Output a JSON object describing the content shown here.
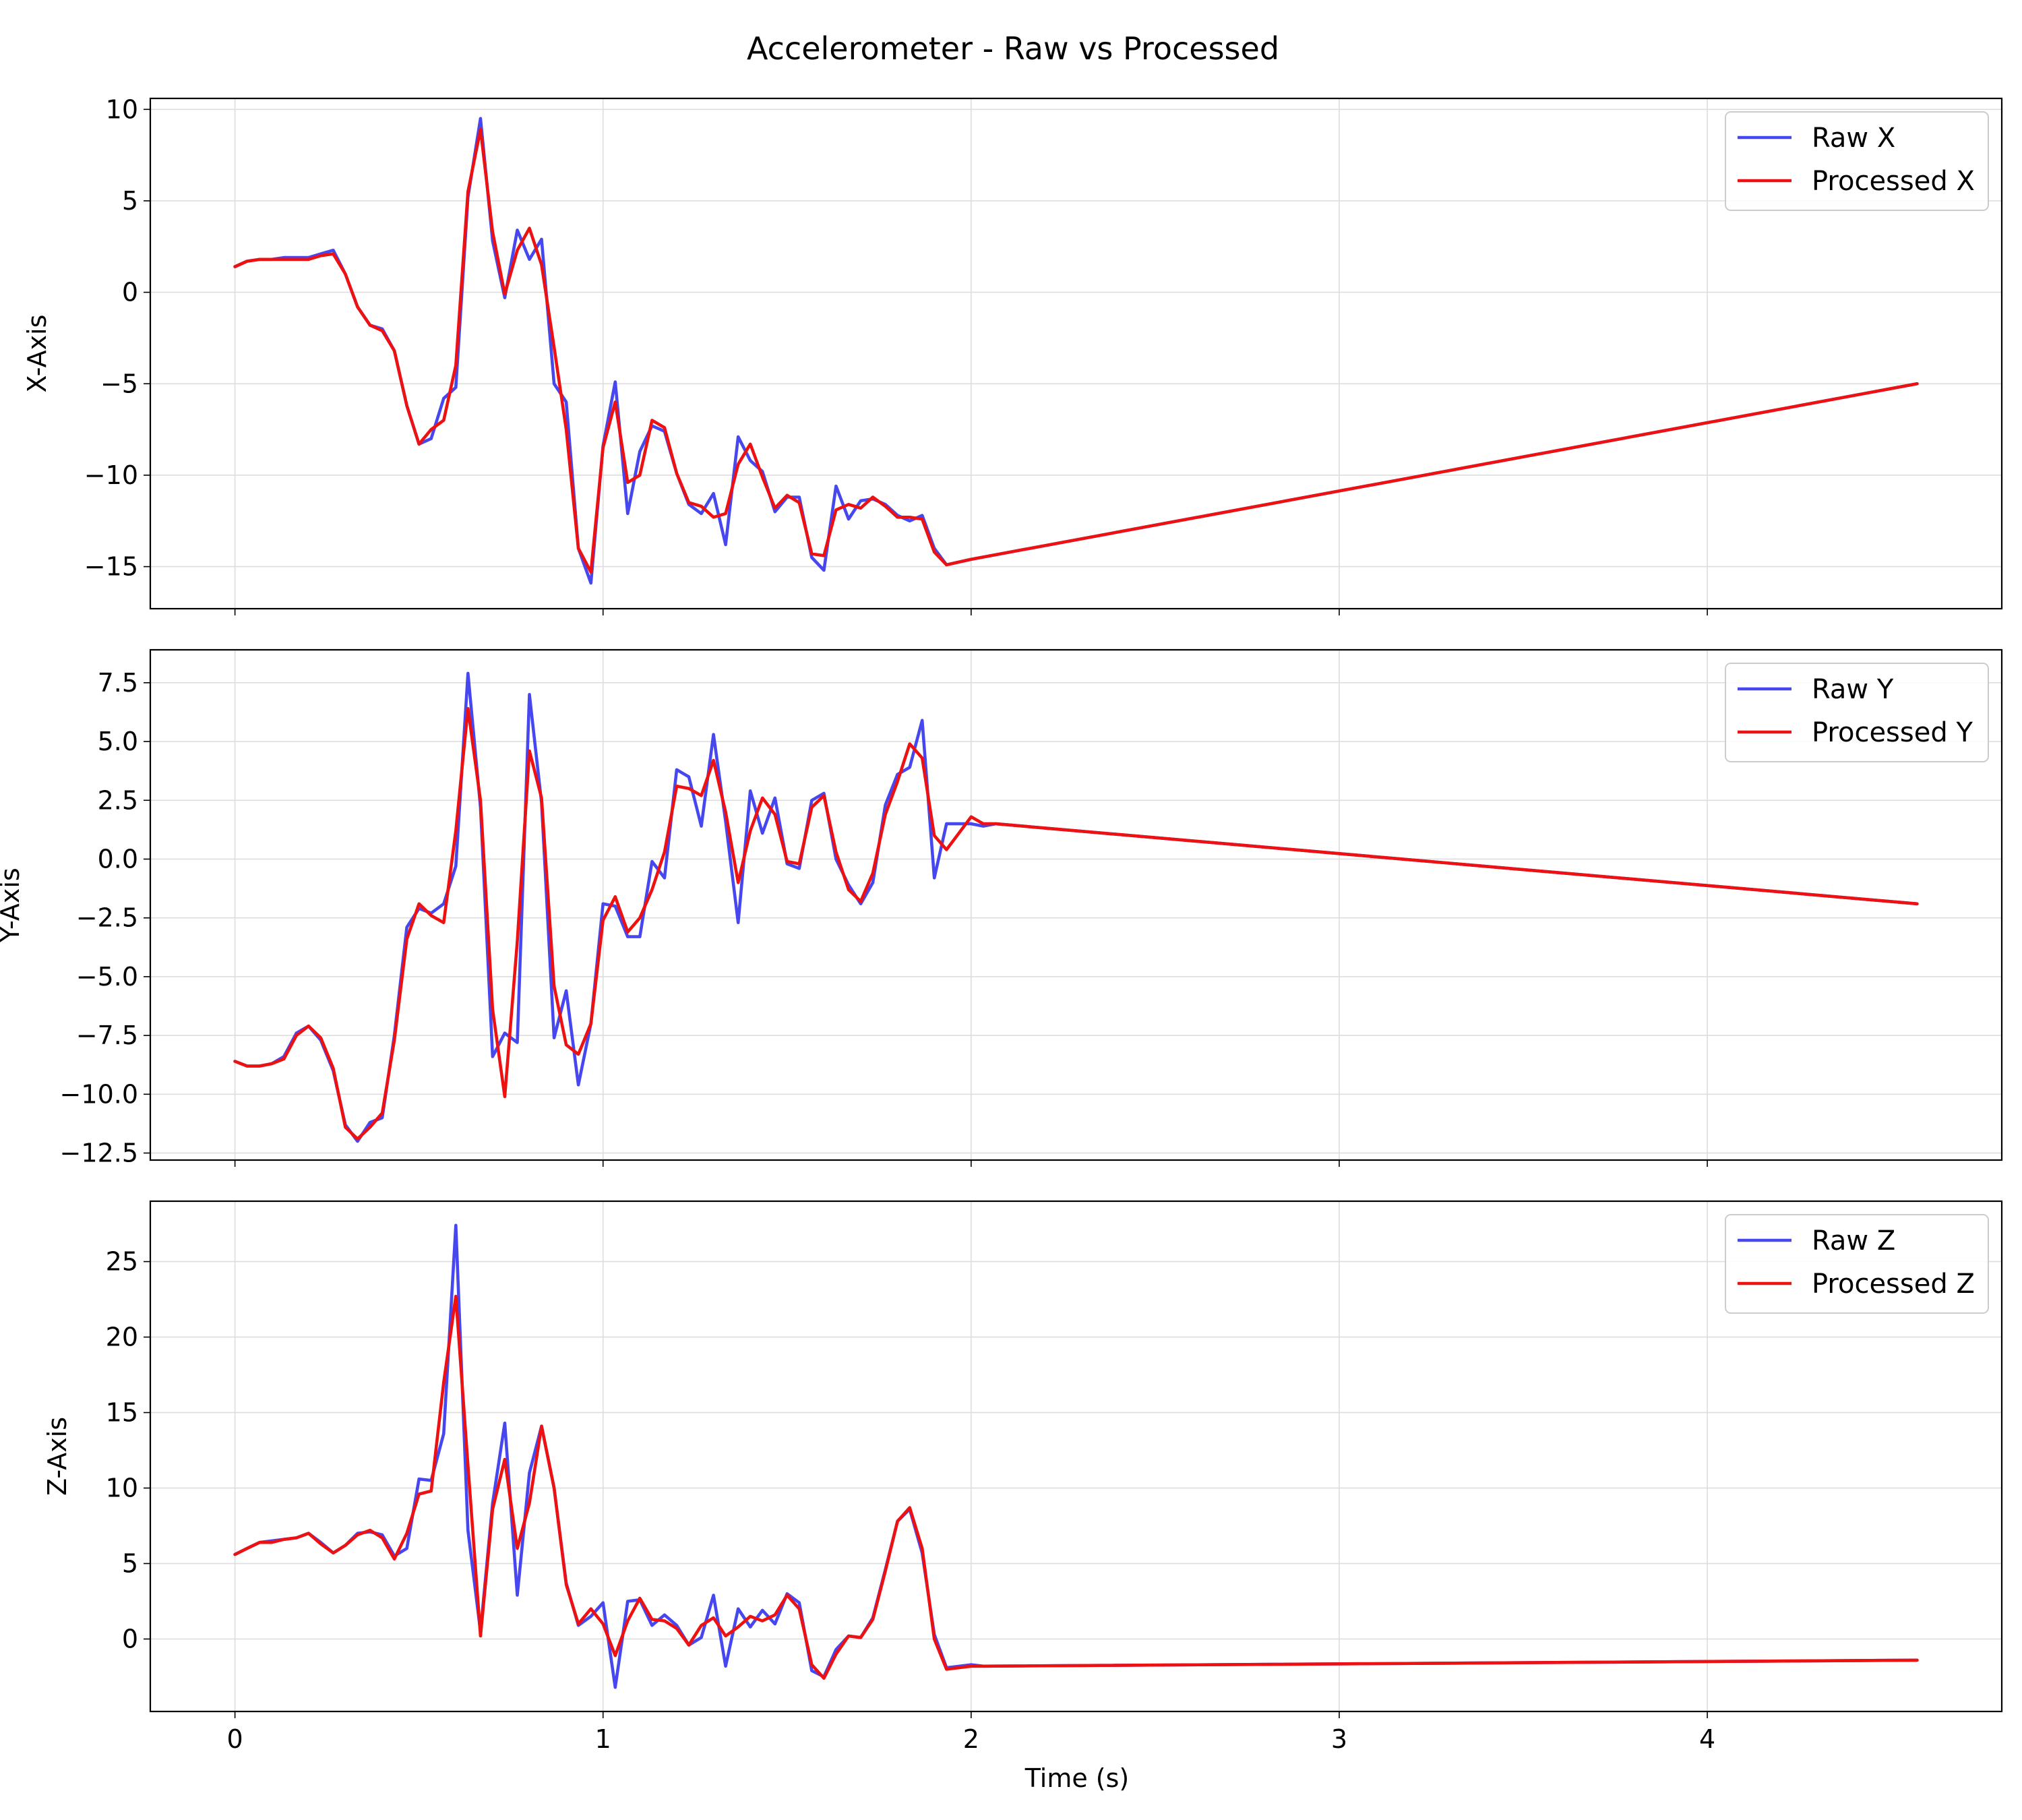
{
  "chart_data": {
    "type": "line",
    "title": "Accelerometer - Raw vs Processed",
    "xlabel": "Time (s)",
    "grid": true,
    "legend_position": "top-right",
    "colors": {
      "raw": "#3333ee",
      "processed": "#ee1111"
    },
    "xlim": [
      -0.23,
      4.8
    ],
    "xticks": [
      0,
      1,
      2,
      3,
      4
    ],
    "subplots": [
      {
        "ylabel": "X-Axis",
        "ylim": [
          -17.3,
          10.6
        ],
        "yticks": [
          10,
          5,
          0,
          -5,
          -10,
          -15
        ],
        "yticklabels": [
          "10",
          "5",
          "0",
          "−5",
          "−10",
          "−15"
        ],
        "series": [
          {
            "name": "Raw X",
            "x": [
              0,
              0.033,
              0.067,
              0.1,
              0.133,
              0.167,
              0.2,
              0.233,
              0.267,
              0.3,
              0.333,
              0.367,
              0.4,
              0.433,
              0.467,
              0.5,
              0.533,
              0.567,
              0.6,
              0.633,
              0.667,
              0.7,
              0.733,
              0.767,
              0.8,
              0.833,
              0.867,
              0.9,
              0.933,
              0.967,
              1.0,
              1.033,
              1.067,
              1.1,
              1.133,
              1.167,
              1.2,
              1.233,
              1.267,
              1.3,
              1.333,
              1.367,
              1.4,
              1.433,
              1.467,
              1.5,
              1.533,
              1.567,
              1.6,
              1.633,
              1.667,
              1.7,
              1.733,
              1.767,
              1.8,
              1.833,
              1.867,
              1.9,
              1.933,
              2.0,
              4.57
            ],
            "y": [
              1.4,
              1.7,
              1.8,
              1.8,
              1.9,
              1.9,
              1.9,
              2.1,
              2.3,
              1.0,
              -0.8,
              -1.8,
              -2.0,
              -3.2,
              -6.2,
              -8.3,
              -8.0,
              -5.8,
              -5.2,
              5.2,
              9.5,
              2.8,
              -0.3,
              3.4,
              1.8,
              2.9,
              -5.0,
              -6.0,
              -14.0,
              -15.9,
              -8.4,
              -4.9,
              -12.1,
              -8.7,
              -7.3,
              -7.6,
              -9.9,
              -11.6,
              -12.1,
              -11.0,
              -13.8,
              -7.9,
              -9.2,
              -9.8,
              -12.0,
              -11.2,
              -11.2,
              -14.5,
              -15.2,
              -10.6,
              -12.4,
              -11.4,
              -11.3,
              -11.6,
              -12.2,
              -12.5,
              -12.2,
              -14.0,
              -14.9,
              -14.6,
              -5.0
            ]
          },
          {
            "name": "Processed X",
            "x": [
              0,
              0.033,
              0.067,
              0.1,
              0.133,
              0.167,
              0.2,
              0.233,
              0.267,
              0.3,
              0.333,
              0.367,
              0.4,
              0.433,
              0.467,
              0.5,
              0.533,
              0.567,
              0.6,
              0.633,
              0.667,
              0.7,
              0.733,
              0.767,
              0.8,
              0.833,
              0.867,
              0.9,
              0.933,
              0.967,
              1.0,
              1.033,
              1.067,
              1.1,
              1.133,
              1.167,
              1.2,
              1.233,
              1.267,
              1.3,
              1.333,
              1.367,
              1.4,
              1.433,
              1.467,
              1.5,
              1.533,
              1.567,
              1.6,
              1.633,
              1.667,
              1.7,
              1.733,
              1.767,
              1.8,
              1.833,
              1.867,
              1.9,
              1.933,
              2.0,
              4.57
            ],
            "y": [
              1.4,
              1.7,
              1.8,
              1.8,
              1.8,
              1.8,
              1.8,
              2.0,
              2.1,
              1.0,
              -0.8,
              -1.8,
              -2.1,
              -3.2,
              -6.2,
              -8.3,
              -7.5,
              -7.0,
              -4.0,
              5.5,
              8.9,
              3.3,
              -0.1,
              2.3,
              3.5,
              1.5,
              -3.0,
              -7.5,
              -14.0,
              -15.3,
              -8.5,
              -6.0,
              -10.4,
              -10.0,
              -7.0,
              -7.4,
              -9.9,
              -11.5,
              -11.7,
              -12.3,
              -12.1,
              -9.4,
              -8.3,
              -10.1,
              -11.8,
              -11.1,
              -11.5,
              -14.3,
              -14.4,
              -11.9,
              -11.6,
              -11.8,
              -11.2,
              -11.7,
              -12.3,
              -12.3,
              -12.4,
              -14.2,
              -14.9,
              -14.6,
              -5.0
            ]
          }
        ]
      },
      {
        "ylabel": "Y-Axis",
        "ylim": [
          -12.8,
          8.9
        ],
        "yticks": [
          7.5,
          5.0,
          2.5,
          0.0,
          -2.5,
          -5.0,
          -7.5,
          -10.0,
          -12.5
        ],
        "yticklabels": [
          "7.5",
          "5.0",
          "2.5",
          "0.0",
          "−2.5",
          "−5.0",
          "−7.5",
          "−10.0",
          "−12.5"
        ],
        "series": [
          {
            "name": "Raw Y",
            "x": [
              0,
              0.033,
              0.067,
              0.1,
              0.133,
              0.167,
              0.2,
              0.233,
              0.267,
              0.3,
              0.333,
              0.367,
              0.4,
              0.433,
              0.467,
              0.5,
              0.533,
              0.567,
              0.6,
              0.633,
              0.667,
              0.7,
              0.733,
              0.767,
              0.8,
              0.833,
              0.867,
              0.9,
              0.933,
              0.967,
              1.0,
              1.033,
              1.067,
              1.1,
              1.133,
              1.167,
              1.2,
              1.233,
              1.267,
              1.3,
              1.333,
              1.367,
              1.4,
              1.433,
              1.467,
              1.5,
              1.533,
              1.567,
              1.6,
              1.633,
              1.667,
              1.7,
              1.733,
              1.767,
              1.8,
              1.833,
              1.867,
              1.9,
              1.933,
              2.0,
              2.033,
              2.067,
              4.57
            ],
            "y": [
              -8.6,
              -8.8,
              -8.8,
              -8.7,
              -8.4,
              -7.4,
              -7.1,
              -7.7,
              -9.0,
              -11.3,
              -12.0,
              -11.2,
              -11.0,
              -7.5,
              -2.9,
              -2.1,
              -2.3,
              -1.9,
              -0.3,
              7.9,
              2.2,
              -8.4,
              -7.4,
              -7.8,
              7.0,
              2.4,
              -7.6,
              -5.6,
              -9.6,
              -7.0,
              -1.9,
              -2.0,
              -3.3,
              -3.3,
              -0.1,
              -0.8,
              3.8,
              3.5,
              1.4,
              5.3,
              1.6,
              -2.7,
              2.9,
              1.1,
              2.6,
              -0.2,
              -0.4,
              2.5,
              2.8,
              0.0,
              -1.1,
              -1.9,
              -1.0,
              2.3,
              3.6,
              3.9,
              5.9,
              -0.8,
              1.5,
              1.5,
              1.4,
              1.5,
              -1.9
            ]
          },
          {
            "name": "Processed Y",
            "x": [
              0,
              0.033,
              0.067,
              0.1,
              0.133,
              0.167,
              0.2,
              0.233,
              0.267,
              0.3,
              0.333,
              0.367,
              0.4,
              0.433,
              0.467,
              0.5,
              0.533,
              0.567,
              0.6,
              0.633,
              0.667,
              0.7,
              0.733,
              0.767,
              0.8,
              0.833,
              0.867,
              0.9,
              0.933,
              0.967,
              1.0,
              1.033,
              1.067,
              1.1,
              1.133,
              1.167,
              1.2,
              1.233,
              1.267,
              1.3,
              1.333,
              1.367,
              1.4,
              1.433,
              1.467,
              1.5,
              1.533,
              1.567,
              1.6,
              1.633,
              1.667,
              1.7,
              1.733,
              1.767,
              1.8,
              1.833,
              1.867,
              1.9,
              1.933,
              2.0,
              2.033,
              2.067,
              4.57
            ],
            "y": [
              -8.6,
              -8.8,
              -8.8,
              -8.7,
              -8.5,
              -7.5,
              -7.1,
              -7.6,
              -8.9,
              -11.4,
              -11.9,
              -11.4,
              -10.8,
              -7.7,
              -3.4,
              -1.9,
              -2.4,
              -2.7,
              1.2,
              6.4,
              2.5,
              -6.4,
              -10.1,
              -3.5,
              4.6,
              2.6,
              -5.4,
              -7.9,
              -8.3,
              -7.0,
              -2.6,
              -1.6,
              -3.1,
              -2.5,
              -1.3,
              0.3,
              3.1,
              3.0,
              2.7,
              4.2,
              2.0,
              -1.0,
              1.2,
              2.6,
              1.9,
              -0.1,
              -0.2,
              2.2,
              2.7,
              0.3,
              -1.3,
              -1.8,
              -0.6,
              1.9,
              3.3,
              4.9,
              4.3,
              1.0,
              0.4,
              1.8,
              1.5,
              1.5,
              -1.9
            ]
          }
        ]
      },
      {
        "ylabel": "Z-Axis",
        "ylim": [
          -4.8,
          29.0
        ],
        "yticks": [
          25,
          20,
          15,
          10,
          5,
          0
        ],
        "yticklabels": [
          "25",
          "20",
          "15",
          "10",
          "5",
          "0"
        ],
        "series": [
          {
            "name": "Raw Z",
            "x": [
              0,
              0.033,
              0.067,
              0.1,
              0.133,
              0.167,
              0.2,
              0.233,
              0.267,
              0.3,
              0.333,
              0.367,
              0.4,
              0.433,
              0.467,
              0.5,
              0.533,
              0.567,
              0.6,
              0.633,
              0.667,
              0.7,
              0.733,
              0.767,
              0.8,
              0.833,
              0.867,
              0.9,
              0.933,
              0.967,
              1.0,
              1.033,
              1.067,
              1.1,
              1.133,
              1.167,
              1.2,
              1.233,
              1.267,
              1.3,
              1.333,
              1.367,
              1.4,
              1.433,
              1.467,
              1.5,
              1.533,
              1.567,
              1.6,
              1.633,
              1.667,
              1.7,
              1.733,
              1.767,
              1.8,
              1.833,
              1.867,
              1.9,
              1.933,
              2.0,
              2.033,
              4.57
            ],
            "y": [
              5.6,
              6.0,
              6.4,
              6.5,
              6.6,
              6.7,
              7.0,
              6.4,
              5.7,
              6.2,
              7.0,
              7.1,
              6.9,
              5.5,
              6.0,
              10.6,
              10.5,
              13.6,
              27.4,
              7.2,
              0.5,
              9.0,
              14.3,
              2.9,
              11.0,
              14.1,
              10.0,
              3.7,
              0.9,
              1.5,
              2.4,
              -3.2,
              2.5,
              2.6,
              0.9,
              1.6,
              0.9,
              -0.4,
              0.1,
              2.9,
              -1.8,
              2.0,
              0.8,
              1.9,
              1.0,
              3.0,
              2.4,
              -2.1,
              -2.5,
              -0.7,
              0.2,
              0.1,
              1.4,
              4.6,
              7.8,
              8.6,
              5.7,
              0.3,
              -1.9,
              -1.7,
              -1.8,
              -1.4
            ]
          },
          {
            "name": "Processed Z",
            "x": [
              0,
              0.033,
              0.067,
              0.1,
              0.133,
              0.167,
              0.2,
              0.233,
              0.267,
              0.3,
              0.333,
              0.367,
              0.4,
              0.433,
              0.467,
              0.5,
              0.533,
              0.567,
              0.6,
              0.633,
              0.667,
              0.7,
              0.733,
              0.767,
              0.8,
              0.833,
              0.867,
              0.9,
              0.933,
              0.967,
              1.0,
              1.033,
              1.067,
              1.1,
              1.133,
              1.167,
              1.2,
              1.233,
              1.267,
              1.3,
              1.333,
              1.367,
              1.4,
              1.433,
              1.467,
              1.5,
              1.533,
              1.567,
              1.6,
              1.633,
              1.667,
              1.7,
              1.733,
              1.767,
              1.8,
              1.833,
              1.867,
              1.9,
              1.933,
              2.0,
              2.033,
              4.57
            ],
            "y": [
              5.6,
              6.0,
              6.4,
              6.4,
              6.6,
              6.7,
              7.0,
              6.3,
              5.7,
              6.2,
              6.9,
              7.2,
              6.7,
              5.3,
              7.0,
              9.6,
              9.8,
              17.0,
              22.7,
              11.5,
              0.2,
              8.6,
              11.9,
              6.0,
              9.0,
              14.1,
              10.0,
              3.6,
              1.0,
              2.0,
              1.0,
              -1.1,
              1.2,
              2.7,
              1.3,
              1.2,
              0.7,
              -0.4,
              0.9,
              1.4,
              0.2,
              0.8,
              1.5,
              1.2,
              1.6,
              2.9,
              2.0,
              -1.7,
              -2.6,
              -1.0,
              0.2,
              0.1,
              1.3,
              4.5,
              7.8,
              8.7,
              6.0,
              0.0,
              -2.0,
              -1.8,
              -1.8,
              -1.4
            ]
          }
        ]
      }
    ]
  }
}
